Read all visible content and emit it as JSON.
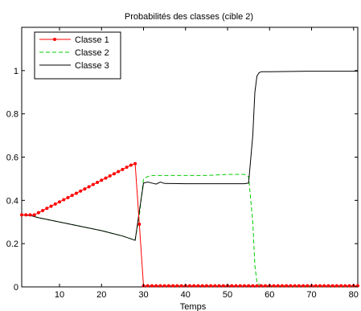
{
  "chart_data": {
    "type": "line",
    "title": "Probabilités des classes (cible 2)",
    "xlabel": "Temps",
    "ylabel": "",
    "xlim": [
      1,
      81
    ],
    "ylim": [
      0,
      1.2
    ],
    "xticks": [
      10,
      20,
      30,
      40,
      50,
      60,
      70,
      80
    ],
    "yticks": [
      0,
      0.2,
      0.4,
      0.6,
      0.8,
      1
    ],
    "ytick_labels": [
      "0",
      "0.2",
      "0.4",
      "0.6",
      "0.8",
      "1"
    ],
    "grid": false,
    "legend": "top-left",
    "series": [
      {
        "name": "Classe 1",
        "color": "#ff0000",
        "style": "solid",
        "marker": "dot",
        "x": [
          1,
          2,
          3,
          4,
          5,
          6,
          7,
          8,
          9,
          10,
          11,
          12,
          13,
          14,
          15,
          16,
          17,
          18,
          19,
          20,
          21,
          22,
          23,
          24,
          25,
          26,
          27,
          28,
          29,
          30,
          31,
          32,
          33,
          34,
          35,
          36,
          37,
          38,
          39,
          40,
          41,
          42,
          43,
          44,
          45,
          46,
          47,
          48,
          49,
          50,
          51,
          52,
          53,
          54,
          55,
          56,
          57,
          58,
          59,
          60,
          61,
          62,
          63,
          64,
          65,
          66,
          67,
          68,
          69,
          70,
          71,
          72,
          73,
          74,
          75,
          76,
          77,
          78,
          79,
          80,
          81
        ],
        "y": [
          0.333,
          0.333,
          0.333,
          0.333,
          0.343,
          0.353,
          0.363,
          0.373,
          0.383,
          0.393,
          0.403,
          0.413,
          0.423,
          0.433,
          0.443,
          0.453,
          0.463,
          0.473,
          0.483,
          0.493,
          0.503,
          0.513,
          0.523,
          0.533,
          0.543,
          0.553,
          0.563,
          0.57,
          0.29,
          0.005,
          0.005,
          0.005,
          0.005,
          0.005,
          0.005,
          0.005,
          0.005,
          0.005,
          0.005,
          0.005,
          0.005,
          0.005,
          0.005,
          0.005,
          0.005,
          0.005,
          0.005,
          0.005,
          0.005,
          0.005,
          0.005,
          0.005,
          0.005,
          0.005,
          0.005,
          0.005,
          0.005,
          0.005,
          0.005,
          0.005,
          0.005,
          0.005,
          0.005,
          0.005,
          0.005,
          0.005,
          0.005,
          0.005,
          0.005,
          0.005,
          0.005,
          0.005,
          0.005,
          0.005,
          0.005,
          0.005,
          0.005,
          0.005,
          0.005,
          0.005,
          0.005
        ]
      },
      {
        "name": "Classe 2",
        "color": "#00cc00",
        "style": "dashed",
        "x": [
          1,
          3,
          5,
          10,
          15,
          20,
          25,
          27,
          28,
          29,
          30,
          31,
          32,
          35,
          40,
          45,
          50,
          54,
          55,
          56,
          56.5,
          57,
          58,
          60,
          70,
          81
        ],
        "y": [
          0.333,
          0.33,
          0.32,
          0.3,
          0.28,
          0.26,
          0.235,
          0.222,
          0.218,
          0.33,
          0.5,
          0.51,
          0.515,
          0.515,
          0.515,
          0.515,
          0.52,
          0.52,
          0.51,
          0.3,
          0.1,
          0.02,
          0.005,
          0.003,
          0.003,
          0.003
        ]
      },
      {
        "name": "Classe 3",
        "color": "#000000",
        "style": "solid",
        "x": [
          1,
          3,
          5,
          10,
          15,
          20,
          25,
          27,
          28,
          29,
          30,
          31,
          32,
          33,
          34,
          35,
          40,
          45,
          50,
          54,
          55,
          56,
          56.5,
          57,
          57.5,
          58,
          60,
          70,
          81
        ],
        "y": [
          0.333,
          0.33,
          0.32,
          0.3,
          0.28,
          0.26,
          0.235,
          0.222,
          0.215,
          0.35,
          0.48,
          0.485,
          0.48,
          0.475,
          0.485,
          0.478,
          0.477,
          0.477,
          0.477,
          0.477,
          0.48,
          0.7,
          0.9,
          0.975,
          0.99,
          0.995,
          0.995,
          0.997,
          0.997
        ]
      }
    ]
  }
}
